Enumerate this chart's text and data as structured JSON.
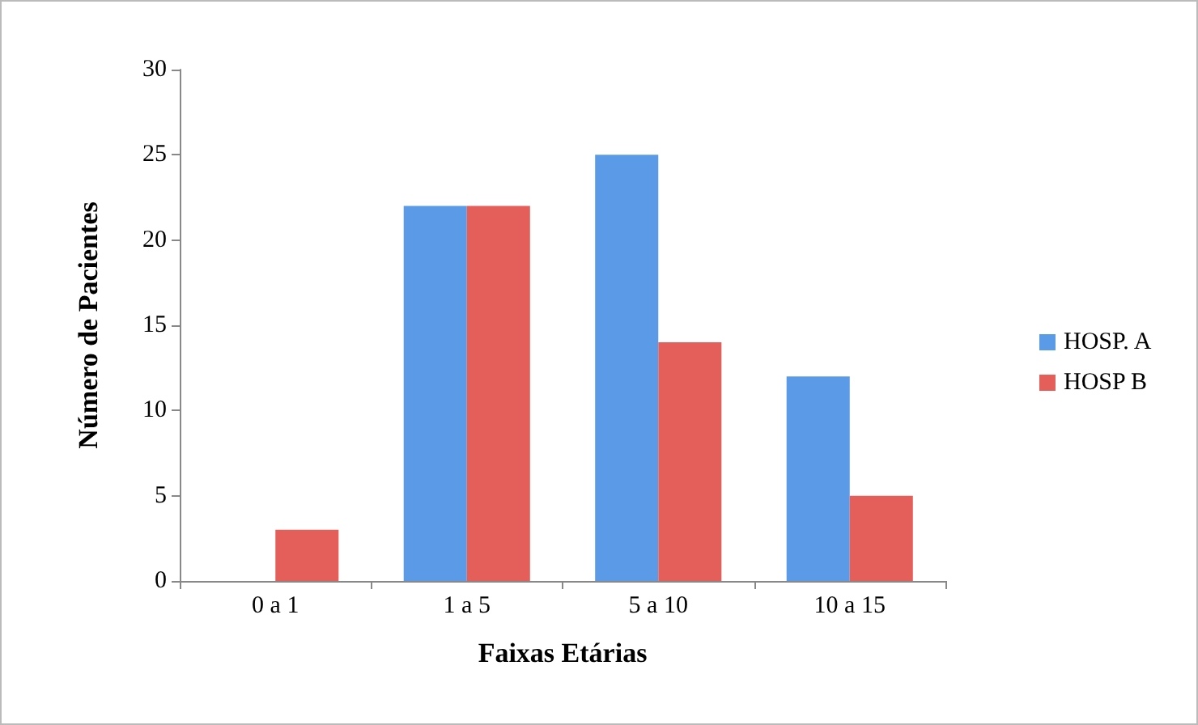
{
  "chart_data": {
    "type": "bar",
    "xlabel": "Faixas Etárias",
    "ylabel": "Número de Pacientes",
    "categories": [
      "0 a 1",
      "1 a 5",
      "5 a 10",
      "10 a 15"
    ],
    "series": [
      {
        "name": "HOSP. A",
        "color": "#5b9ae6",
        "values": [
          0,
          22,
          25,
          12
        ]
      },
      {
        "name": "HOSP B",
        "color": "#e55f5a",
        "values": [
          3,
          22,
          14,
          5
        ]
      }
    ],
    "ylim": [
      0,
      30
    ],
    "yticks": [
      0,
      5,
      10,
      15,
      20,
      25,
      30
    ],
    "grid": false,
    "legend": "right"
  }
}
